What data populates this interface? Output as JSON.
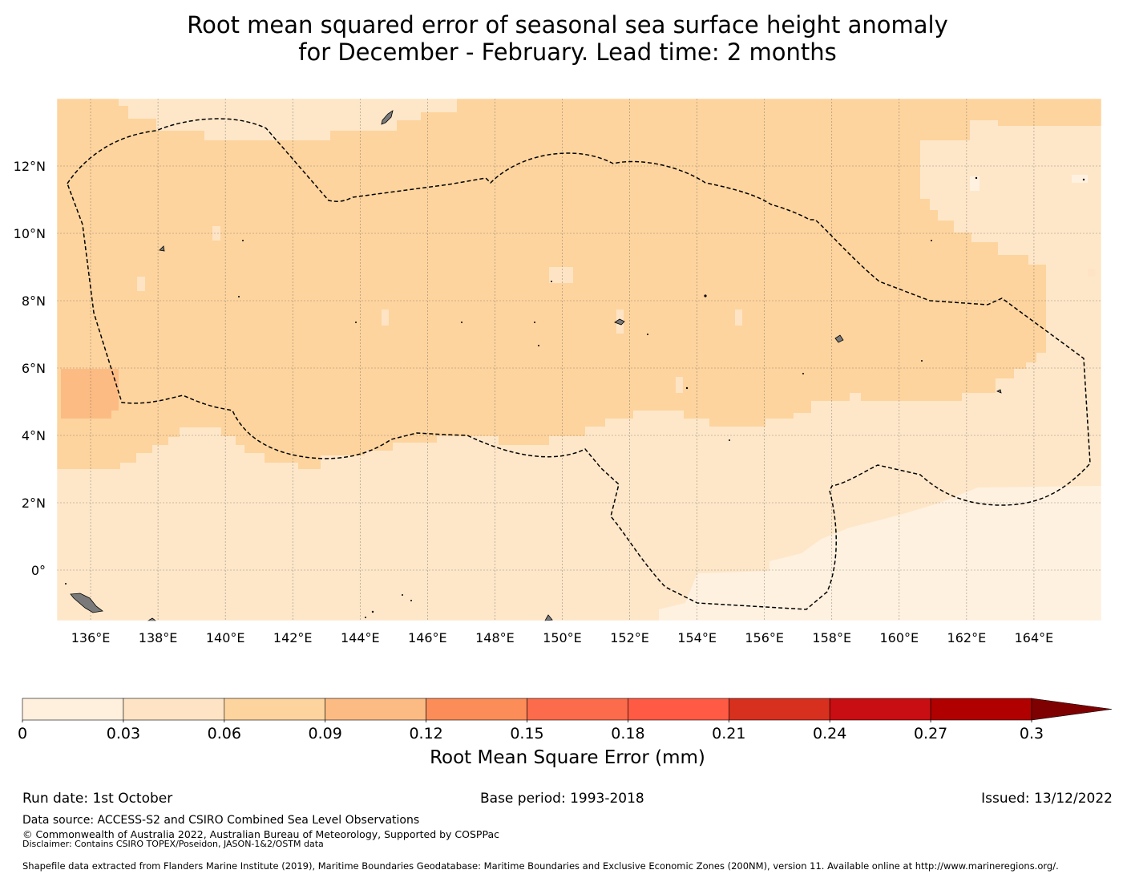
{
  "title": {
    "line1": "Root mean squared error of seasonal sea surface height anomaly",
    "line2": "for December - February. Lead time: 2 months"
  },
  "map": {
    "lat_labels": [
      "12°N",
      "10°N",
      "8°N",
      "6°N",
      "4°N",
      "2°N",
      "0°"
    ],
    "lon_labels": [
      "136°E",
      "138°E",
      "140°E",
      "142°E",
      "144°E",
      "146°E",
      "148°E",
      "150°E",
      "152°E",
      "154°E",
      "156°E",
      "158°E",
      "160°E",
      "162°E",
      "164°E"
    ],
    "lat_range_deg": [
      -1.5,
      14.0
    ],
    "lon_range_deg": [
      135.0,
      166.0
    ],
    "gridlines": true
  },
  "colorbar": {
    "label": "Root Mean Square Error (mm)",
    "ticks": [
      "0",
      "0.03",
      "0.06",
      "0.09",
      "0.12",
      "0.15",
      "0.18",
      "0.21",
      "0.24",
      "0.27",
      "0.3"
    ],
    "colors": [
      "#fff0de",
      "#fee4c4",
      "#fdd49e",
      "#fdbb84",
      "#fc8d59",
      "#fc6b4b",
      "#ff5a44",
      "#d7301f",
      "#c80e13",
      "#b00000",
      "#7f0000"
    ],
    "extend": "max"
  },
  "footer": {
    "run_date": "Run date: 1st October",
    "base_period": "Base period: 1993-2018",
    "issued": "Issued: 13/12/2022",
    "data_source": "Data source: ACCESS-S2 and CSIRO Combined Sea Level Observations",
    "copyright": "© Commonwealth of Australia 2022, Australian Bureau of Meteorology, Supported by COSPPac",
    "disclaimer": "Disclaimer: Contains CSIRO TOPEX/Poseidon, JASON-1&2/OSTM data",
    "shapefile": "Shapefile data extracted from Flanders Marine Institute (2019), Maritime Boundaries Geodatabase: Maritime Boundaries and Exclusive Economic Zones (200NM), version 11. Available online at http://www.marineregions.org/."
  }
}
